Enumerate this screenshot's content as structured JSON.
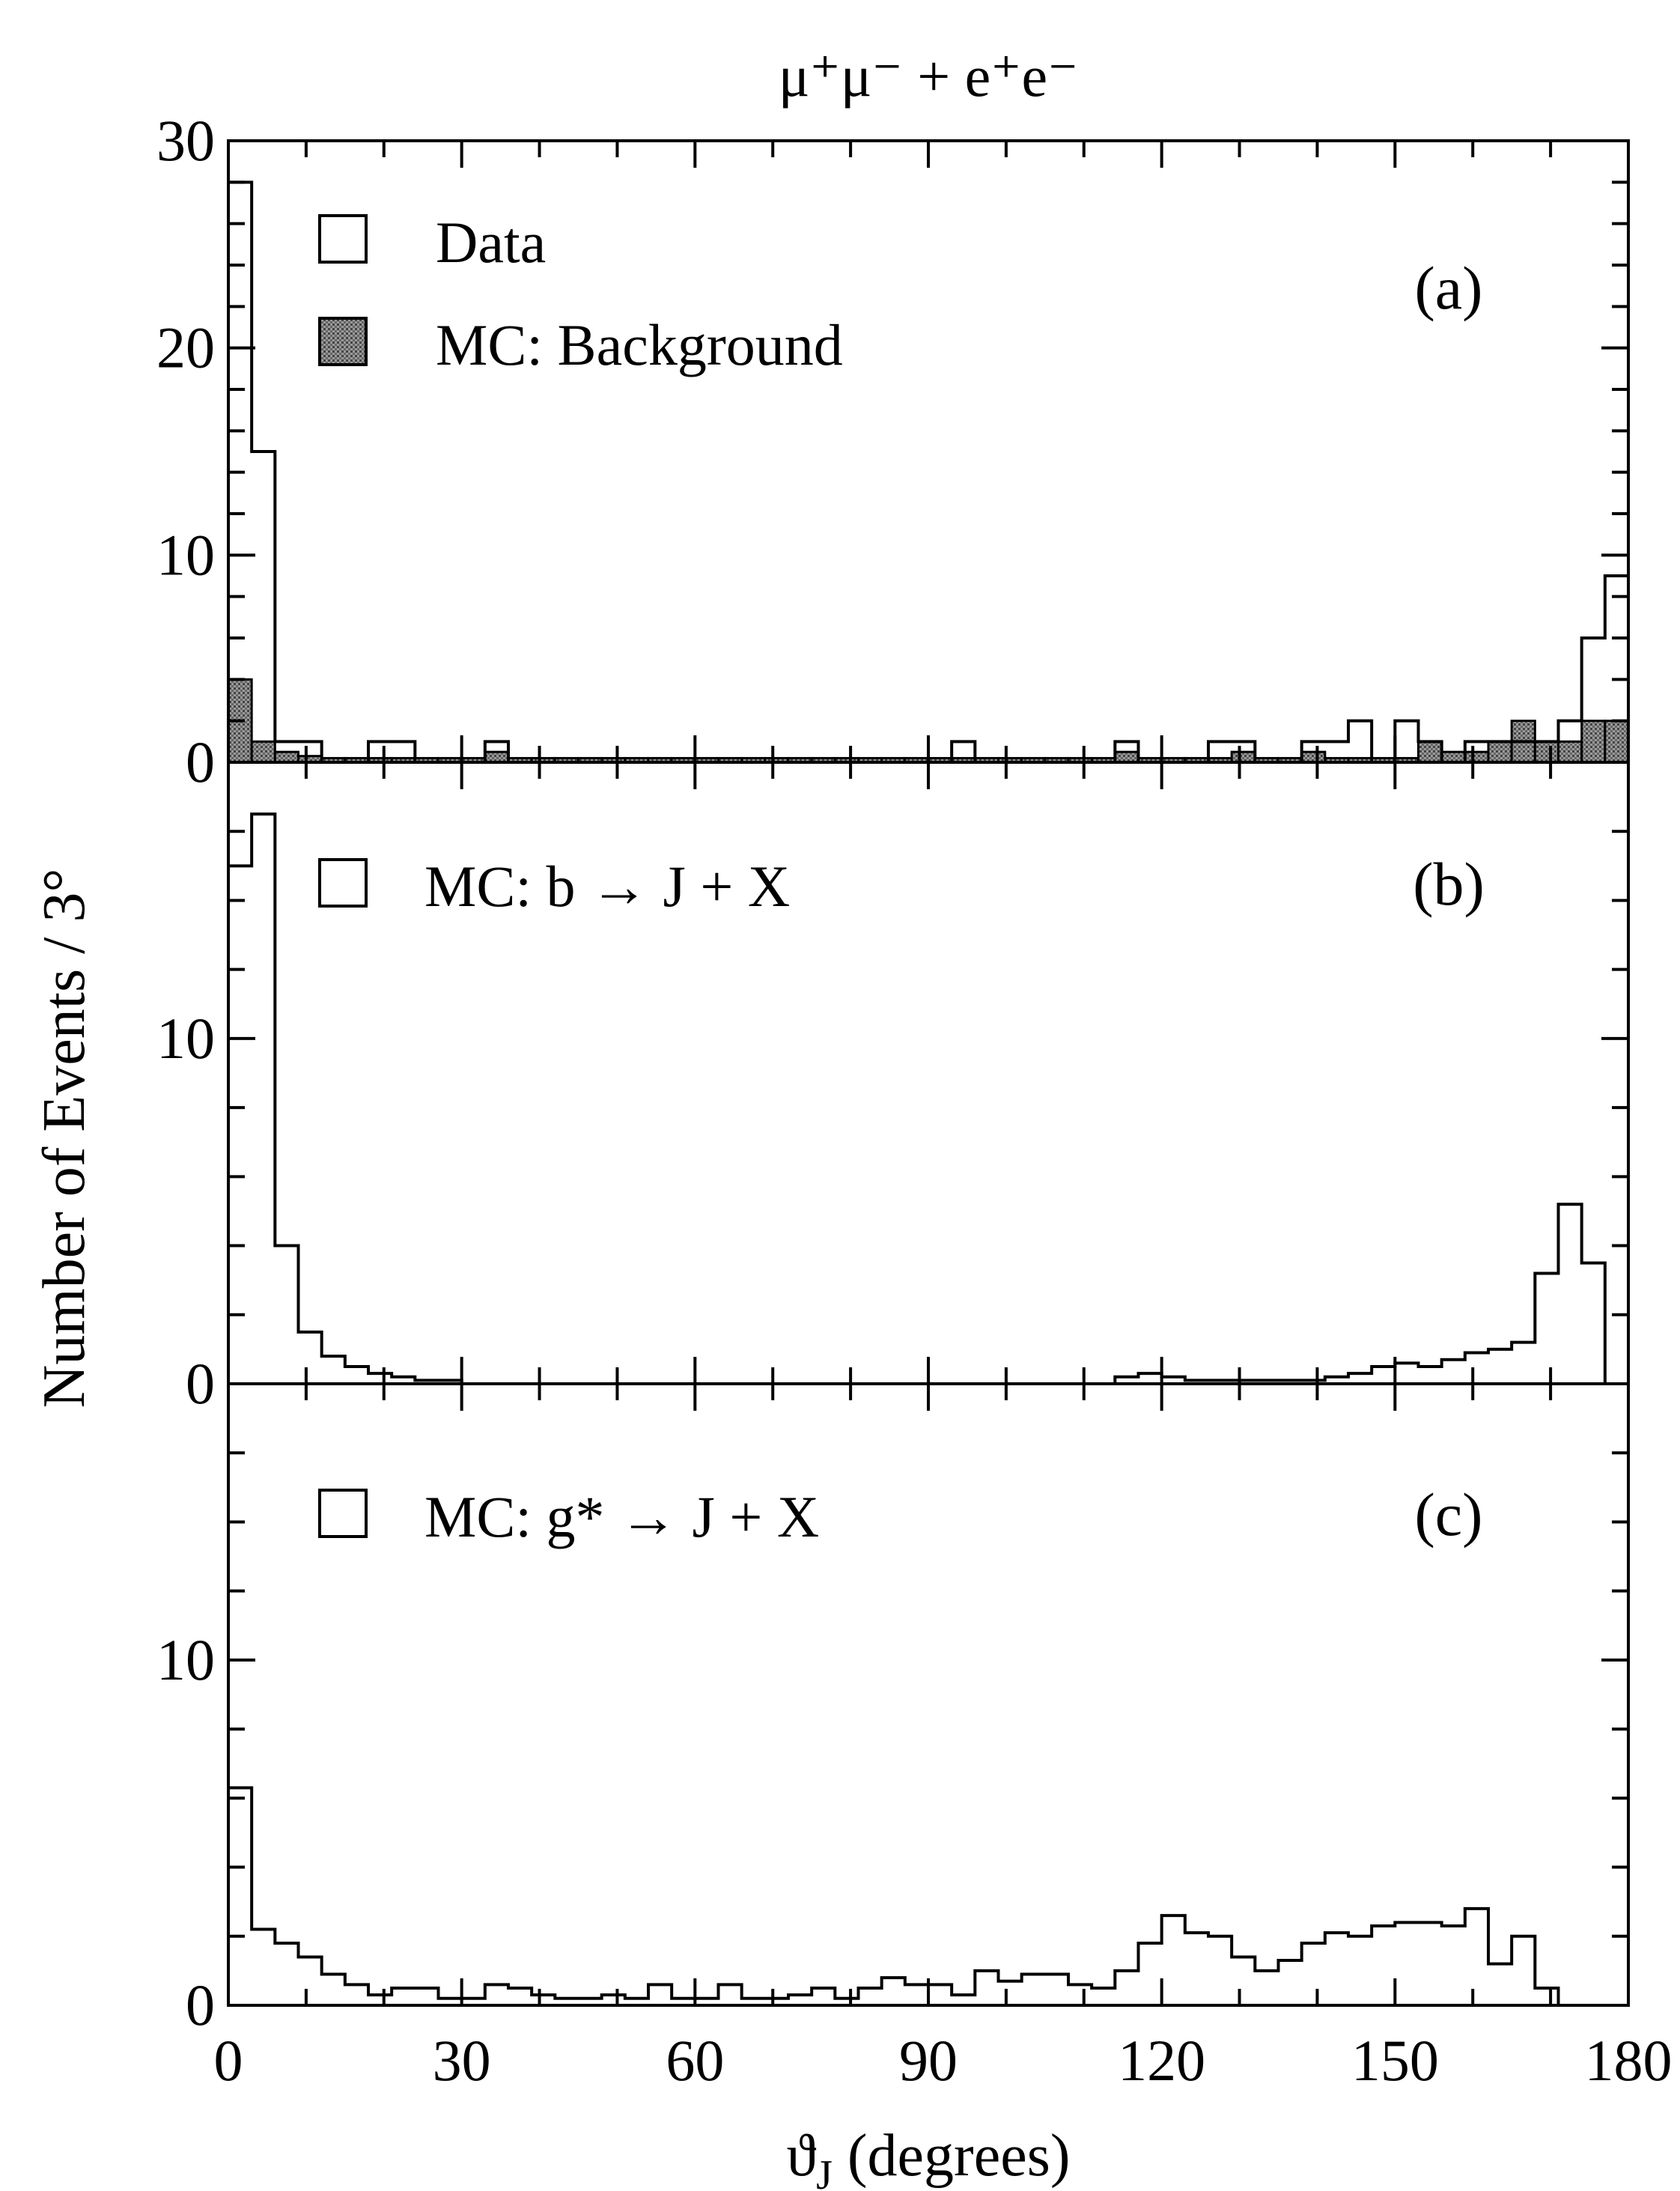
{
  "chart_data": [
    {
      "panel": "(a)",
      "type": "histogram",
      "title": "μ⁺μ⁻ + e⁺e⁻",
      "ylabel": "Number of Events / 3°",
      "xlim": [
        0,
        180
      ],
      "ylim": [
        0,
        30
      ],
      "bin_width": 3,
      "yticks": [
        0,
        10,
        20,
        30
      ],
      "legend": [
        "Data",
        "MC: Background"
      ],
      "series": [
        {
          "name": "Data",
          "values": [
            28,
            15,
            1,
            1,
            0,
            0,
            1,
            1,
            0,
            0,
            0,
            1,
            0,
            0,
            0,
            0,
            0,
            0,
            0,
            0,
            0,
            0,
            0,
            0,
            0,
            0,
            0,
            0,
            0,
            0,
            0,
            1,
            0,
            0,
            0,
            0,
            0,
            0,
            1,
            0,
            0,
            0,
            1,
            1,
            0,
            0,
            1,
            1,
            2,
            0,
            2,
            1,
            0,
            1,
            1,
            1,
            1,
            2,
            6,
            9
          ]
        },
        {
          "name": "MC: Background",
          "values": [
            4,
            1,
            0.5,
            0.3,
            0.2,
            0.2,
            0.2,
            0.2,
            0.2,
            0.2,
            0.2,
            0.5,
            0.2,
            0.2,
            0.2,
            0.2,
            0.2,
            0.2,
            0.2,
            0.2,
            0.2,
            0.2,
            0.2,
            0.2,
            0.2,
            0.2,
            0.2,
            0.2,
            0.2,
            0.2,
            0.2,
            0.2,
            0.2,
            0.2,
            0.2,
            0.2,
            0.2,
            0.2,
            0.5,
            0.2,
            0.2,
            0.2,
            0.2,
            0.5,
            0.2,
            0.2,
            0.5,
            0.2,
            0.2,
            0.2,
            0.2,
            1,
            0.5,
            0.5,
            1,
            2,
            1,
            1,
            2,
            2
          ]
        }
      ]
    },
    {
      "panel": "(b)",
      "type": "histogram",
      "xlim": [
        0,
        180
      ],
      "ylim": [
        0,
        18
      ],
      "bin_width": 3,
      "yticks": [
        0,
        10
      ],
      "legend": [
        "MC: b → J + X"
      ],
      "series": [
        {
          "name": "MC: b → J + X",
          "values": [
            15,
            16.5,
            4,
            1.5,
            0.8,
            0.5,
            0.3,
            0.2,
            0.1,
            0.1,
            0,
            0,
            0,
            0,
            0,
            0,
            0,
            0,
            0,
            0,
            0,
            0,
            0,
            0,
            0,
            0,
            0,
            0,
            0,
            0,
            0,
            0,
            0,
            0,
            0,
            0,
            0,
            0,
            0.2,
            0.3,
            0.2,
            0.1,
            0.1,
            0.1,
            0.1,
            0.1,
            0.1,
            0.2,
            0.3,
            0.5,
            0.6,
            0.5,
            0.7,
            0.9,
            1.0,
            1.2,
            3.2,
            5.2,
            3.5,
            0
          ]
        }
      ]
    },
    {
      "panel": "(c)",
      "type": "histogram",
      "xlim": [
        0,
        180
      ],
      "ylim": [
        0,
        18
      ],
      "bin_width": 3,
      "yticks": [
        0,
        10
      ],
      "xticks": [
        0,
        30,
        60,
        90,
        120,
        150,
        180
      ],
      "xlabel": "ϑ_J (degrees)",
      "legend": [
        "MC: g* → J + X"
      ],
      "series": [
        {
          "name": "MC: g* → J + X",
          "values": [
            6.3,
            2.2,
            1.8,
            1.4,
            0.9,
            0.6,
            0.3,
            0.5,
            0.5,
            0.2,
            0.2,
            0.6,
            0.5,
            0.3,
            0.2,
            0.2,
            0.3,
            0.2,
            0.6,
            0.2,
            0.2,
            0.6,
            0.2,
            0.2,
            0.3,
            0.5,
            0.2,
            0.5,
            0.8,
            0.6,
            0.6,
            0.3,
            1.0,
            0.7,
            0.9,
            0.9,
            0.6,
            0.5,
            1.0,
            1.8,
            2.6,
            2.1,
            2.0,
            1.4,
            1.0,
            1.3,
            1.8,
            2.1,
            2.0,
            2.3,
            2.4,
            2.4,
            2.3,
            2.8,
            1.2,
            2.0,
            0.5,
            0,
            0,
            0
          ]
        }
      ]
    }
  ],
  "icons": {
    "legend_box": "open-square-icon",
    "legend_shaded": "shaded-square-icon"
  }
}
